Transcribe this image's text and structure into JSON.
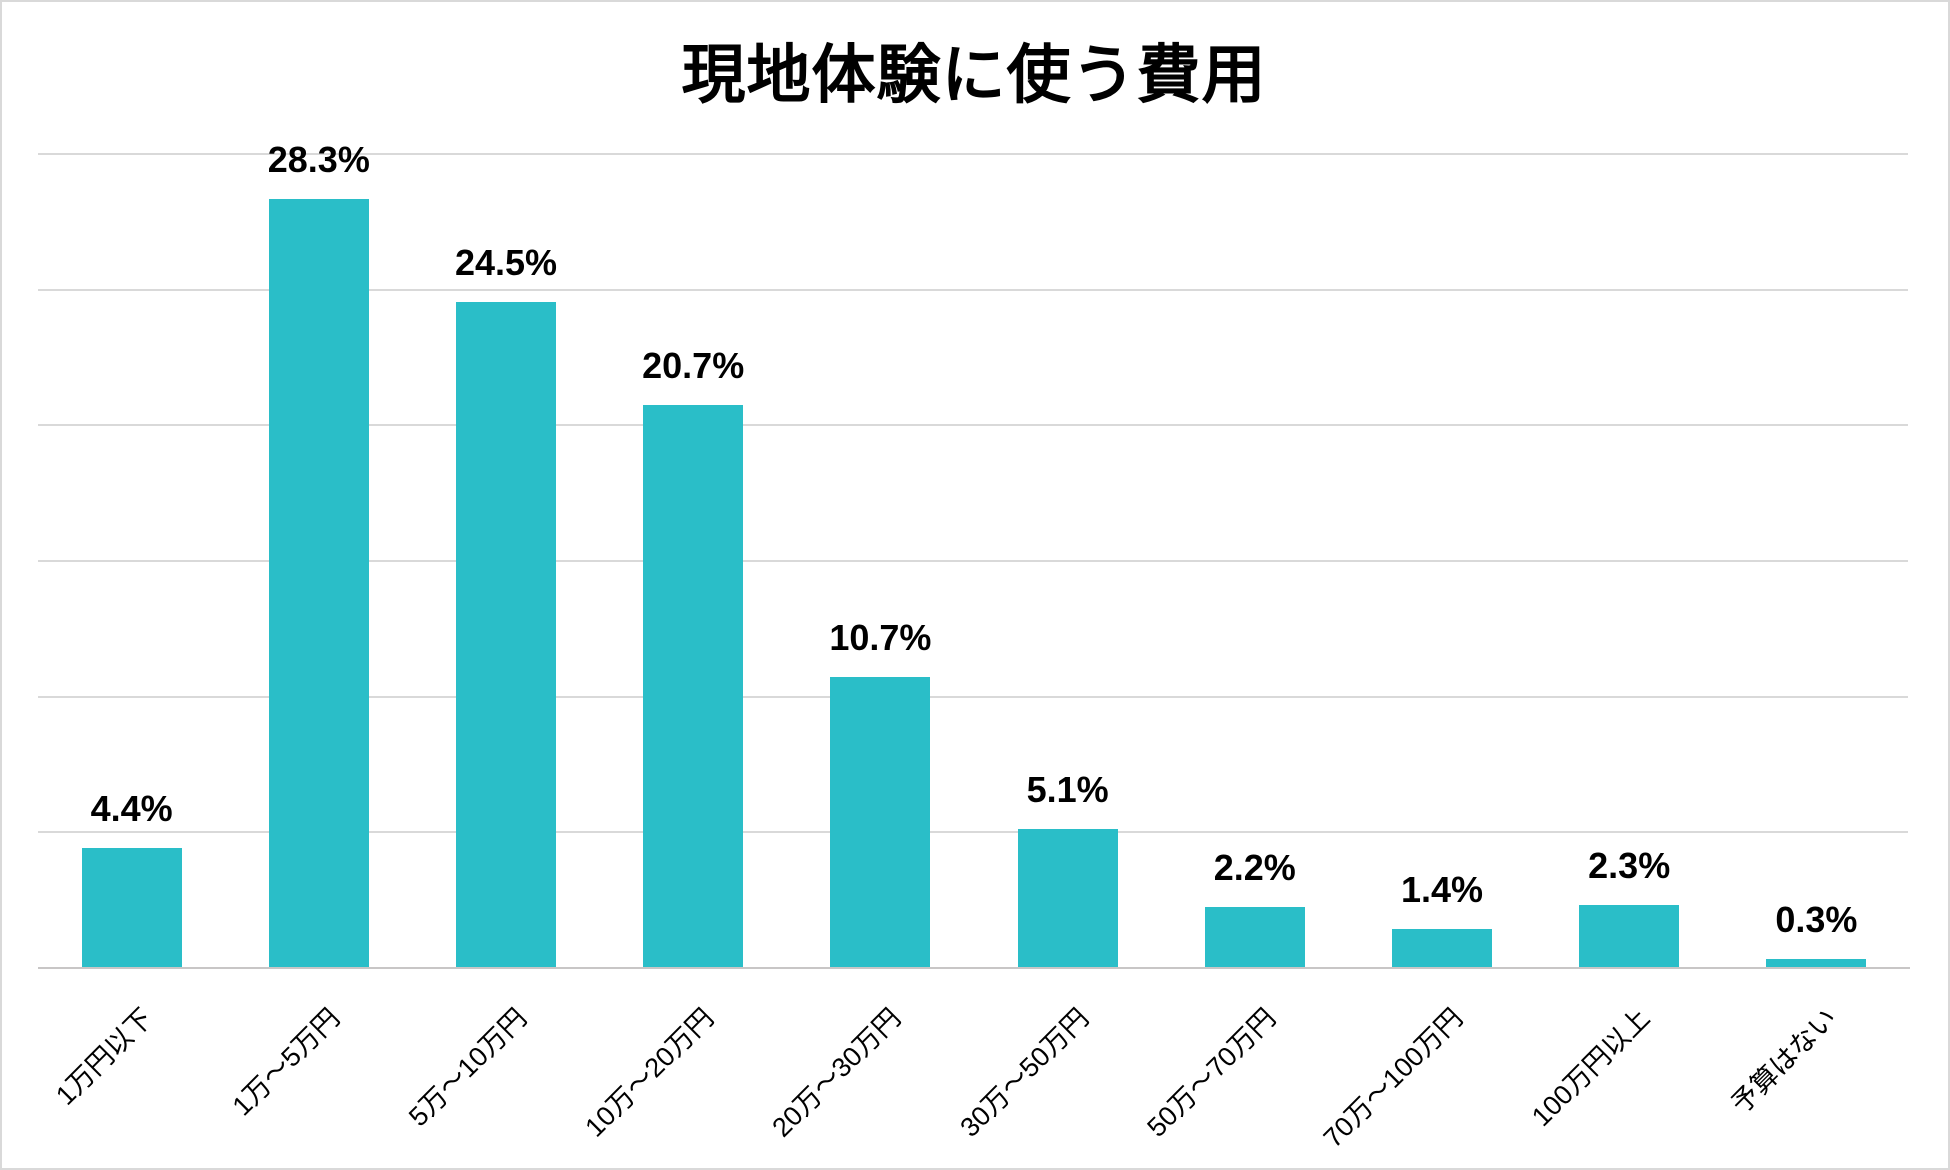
{
  "chart_data": {
    "type": "bar",
    "title": "現地体験に使う費用",
    "categories": [
      "1万円以下",
      "1万～5万円",
      "5万～10万円",
      "10万～20万円",
      "20万～30万円",
      "30万～50万円",
      "50万～70万円",
      "70万～100万円",
      "100万円以上",
      "予算はない"
    ],
    "values": [
      4.4,
      28.3,
      24.5,
      20.7,
      10.7,
      5.1,
      2.2,
      1.4,
      2.3,
      0.3
    ],
    "value_labels": [
      "4.4%",
      "28.3%",
      "24.5%",
      "20.7%",
      "10.7%",
      "5.1%",
      "2.2%",
      "1.4%",
      "2.3%",
      "0.3%"
    ],
    "xlabel": "",
    "ylabel": "",
    "ylim": [
      0,
      30
    ],
    "gridline_interval": 5,
    "grid": true,
    "legend": false,
    "data_labels": true,
    "bar_color": "#2abec8",
    "gridline_color": "#d9d9d9",
    "axis_color": "#c8c6c6",
    "title_color": "#000000",
    "label_color": "#000000"
  }
}
